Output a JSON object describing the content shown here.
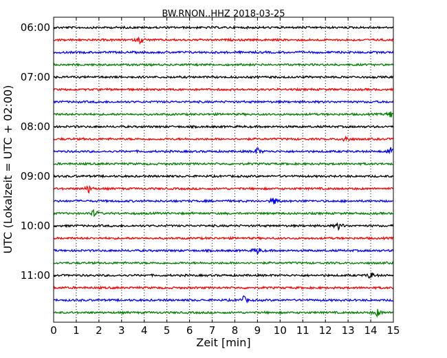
{
  "chart_data": {
    "type": "line",
    "title": "BW.RNON..HHZ 2018-03-25",
    "xlabel": "Zeit  [min]",
    "ylabel": "UTC (Lokalzeit = UTC + 02:00)",
    "xlim": [
      0,
      15
    ],
    "x_ticks": [
      0,
      1,
      2,
      3,
      4,
      5,
      6,
      7,
      8,
      9,
      10,
      11,
      12,
      13,
      14,
      15
    ],
    "y_tick_labels": [
      "06:00",
      "07:00",
      "08:00",
      "09:00",
      "10:00",
      "11:00"
    ],
    "y_tick_trace_index": [
      0,
      4,
      8,
      12,
      16,
      20
    ],
    "trace_interval_min": 15,
    "trace_start": "06:00",
    "trace_colors": [
      "#000000",
      "#ff0000",
      "#0000ff",
      "#008000"
    ],
    "vertical_grid": "dotted",
    "traces": [
      {
        "start": "06:00",
        "events_min": []
      },
      {
        "start": "06:15",
        "events_min": [
          3.85
        ]
      },
      {
        "start": "06:30",
        "events_min": []
      },
      {
        "start": "06:45",
        "events_min": []
      },
      {
        "start": "07:00",
        "events_min": []
      },
      {
        "start": "07:15",
        "events_min": []
      },
      {
        "start": "07:30",
        "events_min": []
      },
      {
        "start": "07:45",
        "events_min": [
          14.9
        ]
      },
      {
        "start": "08:00",
        "events_min": []
      },
      {
        "start": "08:15",
        "events_min": [
          12.9
        ]
      },
      {
        "start": "08:30",
        "events_min": [
          9.0,
          14.9
        ]
      },
      {
        "start": "08:45",
        "events_min": []
      },
      {
        "start": "09:00",
        "events_min": []
      },
      {
        "start": "09:15",
        "events_min": [
          1.55
        ]
      },
      {
        "start": "09:30",
        "events_min": [
          9.75
        ]
      },
      {
        "start": "09:45",
        "events_min": [
          1.8
        ]
      },
      {
        "start": "10:00",
        "events_min": [
          12.6
        ]
      },
      {
        "start": "10:15",
        "events_min": []
      },
      {
        "start": "10:30",
        "events_min": [
          9.0
        ]
      },
      {
        "start": "10:45",
        "events_min": []
      },
      {
        "start": "11:00",
        "events_min": [
          14.0
        ]
      },
      {
        "start": "11:15",
        "events_min": []
      },
      {
        "start": "11:30",
        "events_min": [
          8.4
        ]
      },
      {
        "start": "11:45",
        "events_min": [
          14.3
        ]
      }
    ]
  }
}
